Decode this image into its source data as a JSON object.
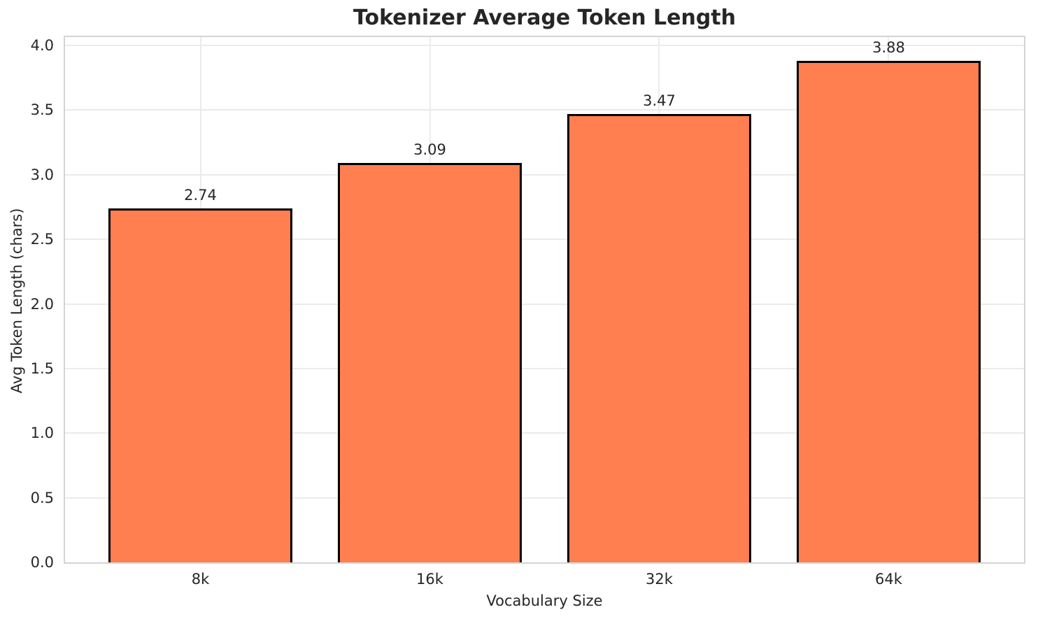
{
  "chart_data": {
    "type": "bar",
    "title": "Tokenizer Average Token Length",
    "xlabel": "Vocabulary Size",
    "ylabel": "Avg Token Length (chars)",
    "categories": [
      "8k",
      "16k",
      "32k",
      "64k"
    ],
    "values": [
      2.74,
      3.09,
      3.47,
      3.88
    ],
    "value_labels": [
      "2.74",
      "3.09",
      "3.47",
      "3.88"
    ],
    "yticks": [
      0.0,
      0.5,
      1.0,
      1.5,
      2.0,
      2.5,
      3.0,
      3.5,
      4.0
    ],
    "ytick_labels": [
      "0.0",
      "0.5",
      "1.0",
      "1.5",
      "2.0",
      "2.5",
      "3.0",
      "3.5",
      "4.0"
    ],
    "ylim": [
      0,
      4.065
    ],
    "xlim_units": [
      -0.59,
      3.59
    ],
    "bar_width_units": 0.8,
    "grid": true,
    "legend": "none",
    "colors": {
      "bar_fill": "#FF7F50",
      "bar_edge": "#000000",
      "grid": "#EBEBEB",
      "spine": "#D4D4D4",
      "text": "#262626",
      "background": "#FFFFFF"
    }
  }
}
